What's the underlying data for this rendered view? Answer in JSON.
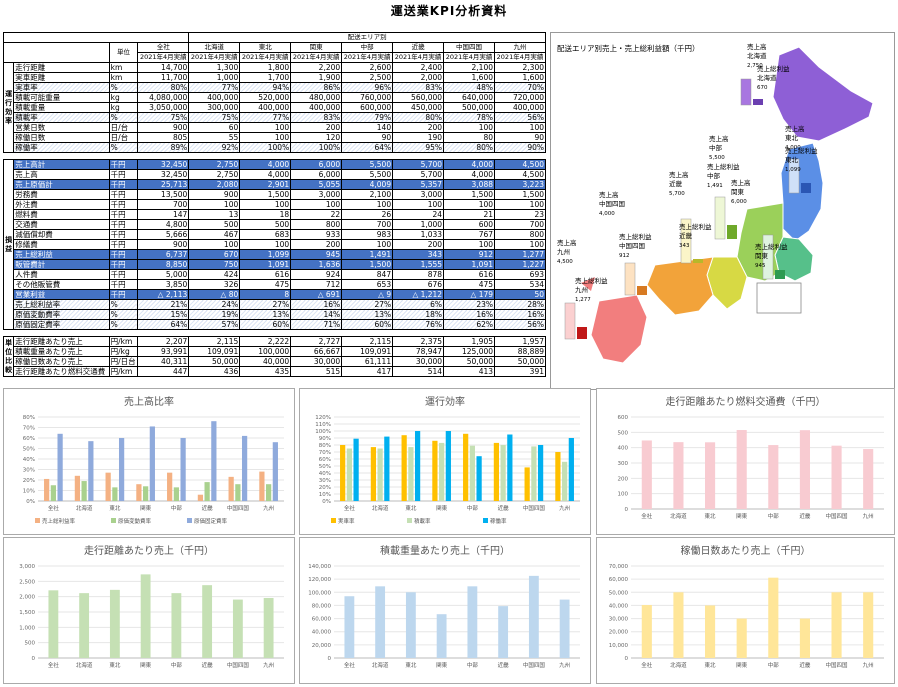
{
  "title": "運送業KPI分析資料",
  "table": {
    "header_group": "配送エリア別",
    "unit_label": "単位",
    "columns": [
      {
        "name": "全社",
        "period": "2021年4月実績"
      },
      {
        "name": "北海道",
        "period": "2021年4月実績"
      },
      {
        "name": "東北",
        "period": "2021年4月実績"
      },
      {
        "name": "関東",
        "period": "2021年4月実績"
      },
      {
        "name": "中部",
        "period": "2021年4月実績"
      },
      {
        "name": "近畿",
        "period": "2021年4月実績"
      },
      {
        "name": "中国四国",
        "period": "2021年4月実績"
      },
      {
        "name": "九州",
        "period": "2021年4月実績"
      }
    ],
    "sections": [
      {
        "label": "運行効率",
        "rows": [
          {
            "name": "走行距離",
            "unit": "km",
            "values": [
              "14,700",
              "1,300",
              "1,800",
              "2,200",
              "2,600",
              "2,400",
              "2,100",
              "2,300"
            ],
            "style": ""
          },
          {
            "name": "実車距離",
            "unit": "km",
            "values": [
              "11,700",
              "1,000",
              "1,700",
              "1,900",
              "2,500",
              "2,000",
              "1,600",
              "1,600"
            ],
            "style": ""
          },
          {
            "name": "実車率",
            "unit": "%",
            "values": [
              "80%",
              "77%",
              "94%",
              "86%",
              "96%",
              "83%",
              "48%",
              "70%"
            ],
            "style": "hatch"
          },
          {
            "name": "積載可能重量",
            "unit": "kg",
            "values": [
              "4,080,000",
              "400,000",
              "520,000",
              "480,000",
              "760,000",
              "560,000",
              "640,000",
              "720,000"
            ],
            "style": ""
          },
          {
            "name": "積載重量",
            "unit": "kg",
            "values": [
              "3,050,000",
              "300,000",
              "400,000",
              "400,000",
              "600,000",
              "450,000",
              "500,000",
              "400,000"
            ],
            "style": ""
          },
          {
            "name": "積載率",
            "unit": "%",
            "values": [
              "75%",
              "75%",
              "77%",
              "83%",
              "79%",
              "80%",
              "78%",
              "56%"
            ],
            "style": "hatch"
          },
          {
            "name": "営業日数",
            "unit": "日/台",
            "values": [
              "900",
              "60",
              "100",
              "200",
              "140",
              "200",
              "100",
              "100"
            ],
            "style": ""
          },
          {
            "name": "稼働日数",
            "unit": "日/台",
            "values": [
              "805",
              "55",
              "100",
              "120",
              "90",
              "190",
              "80",
              "90"
            ],
            "style": ""
          },
          {
            "name": "稼働率",
            "unit": "%",
            "values": [
              "89%",
              "92%",
              "100%",
              "100%",
              "64%",
              "95%",
              "80%",
              "90%"
            ],
            "style": "hatch"
          }
        ]
      },
      {
        "label": "損益",
        "rows": [
          {
            "name": "売上高計",
            "unit": "千円",
            "values": [
              "32,450",
              "2,750",
              "4,000",
              "6,000",
              "5,500",
              "5,700",
              "4,000",
              "4,500"
            ],
            "style": "blue"
          },
          {
            "name": "売上高",
            "unit": "千円",
            "values": [
              "32,450",
              "2,750",
              "4,000",
              "6,000",
              "5,500",
              "5,700",
              "4,000",
              "4,500"
            ],
            "style": ""
          },
          {
            "name": "売上原価計",
            "unit": "千円",
            "values": [
              "25,713",
              "2,080",
              "2,901",
              "5,055",
              "4,009",
              "5,357",
              "3,088",
              "3,223"
            ],
            "style": "blue"
          },
          {
            "name": "労務費",
            "unit": "千円",
            "values": [
              "13,500",
              "900",
              "1,500",
              "3,000",
              "2,100",
              "3,000",
              "1,500",
              "1,500"
            ],
            "style": ""
          },
          {
            "name": "外注費",
            "unit": "千円",
            "values": [
              "700",
              "100",
              "100",
              "100",
              "100",
              "100",
              "100",
              "100"
            ],
            "style": ""
          },
          {
            "name": "燃料費",
            "unit": "千円",
            "values": [
              "147",
              "13",
              "18",
              "22",
              "26",
              "24",
              "21",
              "23"
            ],
            "style": ""
          },
          {
            "name": "交通費",
            "unit": "千円",
            "values": [
              "4,800",
              "500",
              "500",
              "800",
              "700",
              "1,000",
              "600",
              "700"
            ],
            "style": ""
          },
          {
            "name": "減価償却費",
            "unit": "千円",
            "values": [
              "5,666",
              "467",
              "683",
              "933",
              "983",
              "1,033",
              "767",
              "800"
            ],
            "style": ""
          },
          {
            "name": "修繕費",
            "unit": "千円",
            "values": [
              "900",
              "100",
              "100",
              "200",
              "100",
              "200",
              "100",
              "100"
            ],
            "style": ""
          },
          {
            "name": "売上総利益",
            "unit": "千円",
            "values": [
              "6,737",
              "670",
              "1,099",
              "945",
              "1,491",
              "343",
              "912",
              "1,277"
            ],
            "style": "blue"
          },
          {
            "name": "販管費計",
            "unit": "千円",
            "values": [
              "8,850",
              "750",
              "1,091",
              "1,636",
              "1,500",
              "1,555",
              "1,091",
              "1,227"
            ],
            "style": "blue"
          },
          {
            "name": "人件費",
            "unit": "千円",
            "values": [
              "5,000",
              "424",
              "616",
              "924",
              "847",
              "878",
              "616",
              "693"
            ],
            "style": ""
          },
          {
            "name": "その他販管費",
            "unit": "千円",
            "values": [
              "3,850",
              "326",
              "475",
              "712",
              "653",
              "676",
              "475",
              "534"
            ],
            "style": ""
          },
          {
            "name": "営業利益",
            "unit": "千円",
            "values": [
              "△ 2,113",
              "△ 80",
              "8",
              "△ 691",
              "△ 9",
              "△ 1,212",
              "△ 179",
              "50"
            ],
            "style": "blue"
          },
          {
            "name": "売上総利益率",
            "unit": "%",
            "values": [
              "21%",
              "24%",
              "27%",
              "16%",
              "27%",
              "6%",
              "23%",
              "28%"
            ],
            "style": "hatch"
          },
          {
            "name": "原価変動費率",
            "unit": "%",
            "values": [
              "15%",
              "19%",
              "13%",
              "14%",
              "13%",
              "18%",
              "16%",
              "16%"
            ],
            "style": "hatch"
          },
          {
            "name": "原価固定費率",
            "unit": "%",
            "values": [
              "64%",
              "57%",
              "60%",
              "71%",
              "60%",
              "76%",
              "62%",
              "56%"
            ],
            "style": "hatch"
          }
        ]
      },
      {
        "label": "単位比較",
        "rows": [
          {
            "name": "走行距離あたり売上",
            "unit": "円/km",
            "values": [
              "2,207",
              "2,115",
              "2,222",
              "2,727",
              "2,115",
              "2,375",
              "1,905",
              "1,957"
            ],
            "style": ""
          },
          {
            "name": "積載重量あたり売上",
            "unit": "円/kg",
            "values": [
              "93,991",
              "109,091",
              "100,000",
              "66,667",
              "109,091",
              "78,947",
              "125,000",
              "88,889"
            ],
            "style": ""
          },
          {
            "name": "稼働日数あたり売上",
            "unit": "円/日台",
            "values": [
              "40,311",
              "50,000",
              "40,000",
              "30,000",
              "61,111",
              "30,000",
              "50,000",
              "50,000"
            ],
            "style": ""
          },
          {
            "name": "走行距離あたり燃料交通費",
            "unit": "円/km",
            "values": [
              "447",
              "436",
              "435",
              "515",
              "417",
              "514",
              "413",
              "391"
            ],
            "style": ""
          }
        ]
      }
    ]
  },
  "map": {
    "title": "配送エリア別売上・売上総利益額（千円）",
    "labels": [
      {
        "lines": [
          "売上高",
          "北海道",
          "2,750"
        ]
      },
      {
        "lines": [
          "売上総利益",
          "北海道",
          "670"
        ]
      },
      {
        "lines": [
          "売上高",
          "東北",
          "4,000"
        ]
      },
      {
        "lines": [
          "売上総利益",
          "東北",
          "1,099"
        ]
      },
      {
        "lines": [
          "売上高",
          "中部",
          "5,500"
        ]
      },
      {
        "lines": [
          "売上総利益",
          "中部",
          "1,491"
        ]
      },
      {
        "lines": [
          "売上高",
          "関東",
          "6,000"
        ]
      },
      {
        "lines": [
          "売上総利益",
          "関東",
          "945"
        ]
      },
      {
        "lines": [
          "売上高",
          "近畿",
          "5,700"
        ]
      },
      {
        "lines": [
          "売上総利益",
          "近畿",
          "343"
        ]
      },
      {
        "lines": [
          "売上高",
          "中国四国",
          "4,000"
        ]
      },
      {
        "lines": [
          "売上総利益",
          "中国四国",
          "912"
        ]
      },
      {
        "lines": [
          "売上高",
          "九州",
          "4,500"
        ]
      },
      {
        "lines": [
          "売上総利益",
          "九州",
          "1,277"
        ]
      }
    ]
  },
  "chart_data": [
    {
      "id": "c1",
      "type": "bar",
      "title": "売上高比率",
      "categories": [
        "全社",
        "北海道",
        "東北",
        "関東",
        "中部",
        "近畿",
        "中国四国",
        "九州"
      ],
      "ylim": [
        0,
        80
      ],
      "yticks": [
        0,
        10,
        20,
        30,
        40,
        50,
        60,
        70,
        80
      ],
      "ysuffix": "%",
      "series": [
        {
          "name": "売上総利益率",
          "color": "#f4b183",
          "values": [
            21,
            24,
            27,
            16,
            27,
            6,
            23,
            28
          ]
        },
        {
          "name": "原価変動費率",
          "color": "#a9d18e",
          "values": [
            15,
            19,
            13,
            14,
            13,
            18,
            16,
            16
          ]
        },
        {
          "name": "原価固定費率",
          "color": "#8faadc",
          "values": [
            64,
            57,
            60,
            71,
            60,
            76,
            62,
            56
          ]
        }
      ]
    },
    {
      "id": "c2",
      "type": "bar",
      "title": "運行効率",
      "categories": [
        "全社",
        "北海道",
        "東北",
        "関東",
        "中部",
        "近畿",
        "中国四国",
        "九州"
      ],
      "ylim": [
        0,
        120
      ],
      "yticks": [
        0,
        10,
        20,
        30,
        40,
        50,
        60,
        70,
        80,
        90,
        100,
        110,
        120
      ],
      "ysuffix": "%",
      "series": [
        {
          "name": "実車率",
          "color": "#ffc000",
          "values": [
            80,
            77,
            94,
            86,
            96,
            83,
            48,
            70
          ]
        },
        {
          "name": "積載率",
          "color": "#c5e0b4",
          "values": [
            75,
            75,
            77,
            83,
            79,
            80,
            78,
            56
          ]
        },
        {
          "name": "稼働率",
          "color": "#00b0f0",
          "values": [
            89,
            92,
            100,
            100,
            64,
            95,
            80,
            90
          ]
        }
      ]
    },
    {
      "id": "c3",
      "type": "bar",
      "title": "走行距離あたり燃料交通費（千円）",
      "categories": [
        "全社",
        "北海道",
        "東北",
        "関東",
        "中部",
        "近畿",
        "中国四国",
        "九州"
      ],
      "ylim": [
        0,
        600
      ],
      "yticks": [
        0,
        100,
        200,
        300,
        400,
        500,
        600
      ],
      "ysuffix": "",
      "series": [
        {
          "name": "走行距離あたり燃料交通費",
          "color": "#f8cbd1",
          "values": [
            447,
            436,
            435,
            515,
            417,
            514,
            413,
            391
          ]
        }
      ]
    },
    {
      "id": "c4",
      "type": "bar",
      "title": "走行距離あたり売上（千円）",
      "categories": [
        "全社",
        "北海道",
        "東北",
        "関東",
        "中部",
        "近畿",
        "中国四国",
        "九州"
      ],
      "ylim": [
        0,
        3000
      ],
      "yticks": [
        0,
        500,
        1000,
        1500,
        2000,
        2500,
        3000
      ],
      "ysuffix": "",
      "series": [
        {
          "name": "走行距離あたり売上",
          "color": "#c5e0b4",
          "values": [
            2207,
            2115,
            2222,
            2727,
            2115,
            2375,
            1905,
            1957
          ]
        }
      ]
    },
    {
      "id": "c5",
      "type": "bar",
      "title": "積載重量あたり売上（千円）",
      "categories": [
        "全社",
        "北海道",
        "東北",
        "関東",
        "中部",
        "近畿",
        "中国四国",
        "九州"
      ],
      "ylim": [
        0,
        140000
      ],
      "yticks": [
        0,
        20000,
        40000,
        60000,
        80000,
        100000,
        120000,
        140000
      ],
      "ysuffix": "",
      "series": [
        {
          "name": "積載重量あたり売上",
          "color": "#bdd7ee",
          "values": [
            93991,
            109091,
            100000,
            66667,
            109091,
            78947,
            125000,
            88889
          ]
        }
      ]
    },
    {
      "id": "c6",
      "type": "bar",
      "title": "稼働日数あたり売上（千円）",
      "categories": [
        "全社",
        "北海道",
        "東北",
        "関東",
        "中部",
        "近畿",
        "中国四国",
        "九州"
      ],
      "ylim": [
        0,
        70000
      ],
      "yticks": [
        0,
        10000,
        20000,
        30000,
        40000,
        50000,
        60000,
        70000
      ],
      "ysuffix": "",
      "series": [
        {
          "name": "稼働日数あたり売上",
          "color": "#ffe699",
          "values": [
            40311,
            50000,
            40000,
            30000,
            61111,
            30000,
            50000,
            50000
          ]
        }
      ]
    }
  ]
}
